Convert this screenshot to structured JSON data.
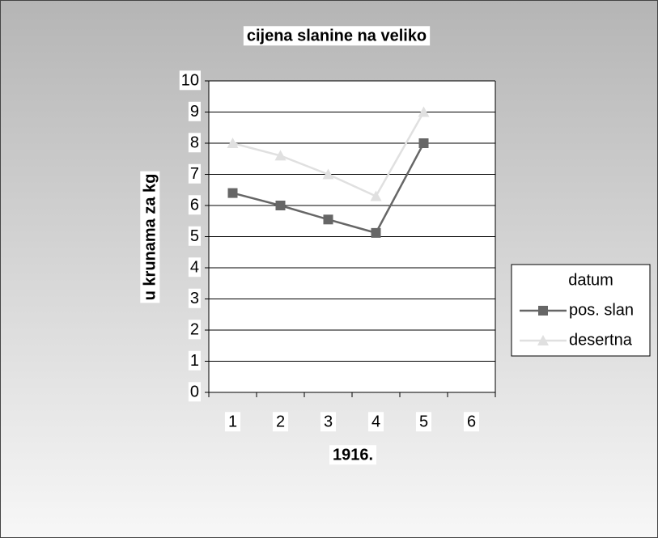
{
  "chart_data": {
    "type": "line",
    "title": "cijena slanine na veliko",
    "x_label": "1916.",
    "y_label": "u krunama za kg",
    "legend_title": "datum",
    "legend": "right",
    "grid": true,
    "categories": [
      "1",
      "2",
      "3",
      "4",
      "5",
      "6"
    ],
    "series": [
      {
        "name": "pos. slan",
        "color": "#666666",
        "marker": "square",
        "values": [
          6.4,
          6.0,
          5.55,
          5.12,
          8.0,
          null
        ]
      },
      {
        "name": "desertna",
        "color": "#e0e0e0",
        "marker": "triangle",
        "values": [
          8.0,
          7.6,
          7.0,
          6.3,
          9.0,
          null
        ]
      }
    ],
    "ylim": [
      0,
      10
    ],
    "yticks": [
      0,
      1,
      2,
      3,
      4,
      5,
      6,
      7,
      8,
      9,
      10
    ]
  }
}
